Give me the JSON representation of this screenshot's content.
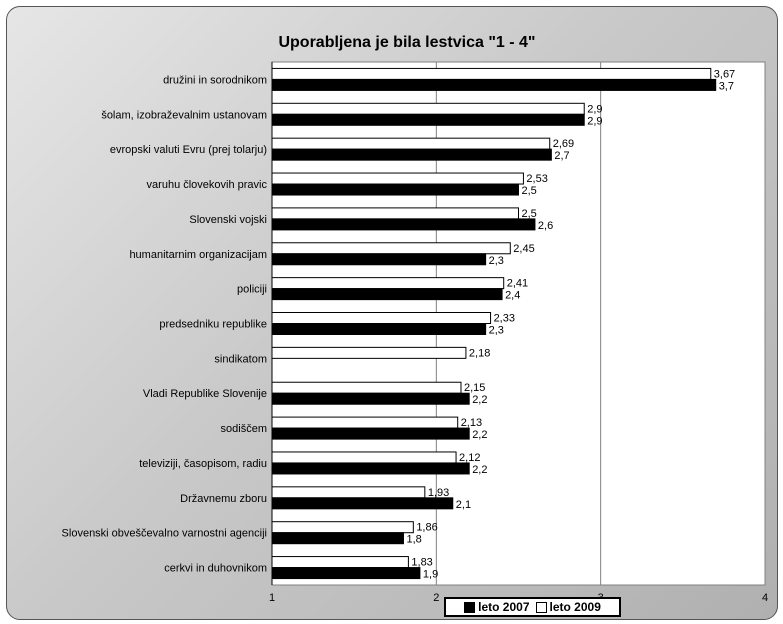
{
  "chart_data": {
    "type": "bar",
    "orientation": "horizontal",
    "title": "Uporabljena je bila lestvica \"1 - 4\"",
    "xlim": [
      1,
      4
    ],
    "xticks": [
      "1",
      "2",
      "3",
      "4"
    ],
    "grid": "vertical",
    "legend": "bottom",
    "categories": [
      "družini in sorodnikom",
      "šolam, izobraževalnim ustanovam",
      "evropski valuti Evru (prej tolarju)",
      "varuhu človekovih pravic",
      "Slovenski vojski",
      "humanitarnim organizacijam",
      "policiji",
      "predsedniku republike",
      "sindikatom",
      "Vladi Republike Slovenije",
      "sodiščem",
      "televiziji, časopisom, radiu",
      "Državnemu zboru",
      "Slovenski obveščevalno varnostni agenciji",
      "cerkvi in duhovnikom"
    ],
    "series": [
      {
        "name": "leto 2009",
        "color": "#ffffff",
        "values": [
          3.67,
          2.9,
          2.69,
          2.53,
          2.5,
          2.45,
          2.41,
          2.33,
          2.18,
          2.15,
          2.13,
          2.12,
          1.93,
          1.86,
          1.83
        ],
        "labels": [
          "3,67",
          "2,9",
          "2,69",
          "2,53",
          "2,5",
          "2,45",
          "2,41",
          "2,33",
          "2,18",
          "2,15",
          "2,13",
          "2,12",
          "1,93",
          "1,86",
          "1,83"
        ]
      },
      {
        "name": "leto 2007",
        "color": "#000000",
        "values": [
          3.7,
          2.9,
          2.7,
          2.5,
          2.6,
          2.3,
          2.4,
          2.3,
          null,
          2.2,
          2.2,
          2.2,
          2.1,
          1.8,
          1.9
        ],
        "labels": [
          "3,7",
          "2,9",
          "2,7",
          "2,5",
          "2,6",
          "2,3",
          "2,4",
          "2,3",
          "",
          "2,2",
          "2,2",
          "2,2",
          "2,1",
          "1,8",
          "1,9"
        ]
      }
    ]
  },
  "legend": {
    "items": [
      {
        "label": "leto 2007",
        "color": "#000000"
      },
      {
        "label": "leto 2009",
        "color": "#ffffff"
      }
    ]
  }
}
